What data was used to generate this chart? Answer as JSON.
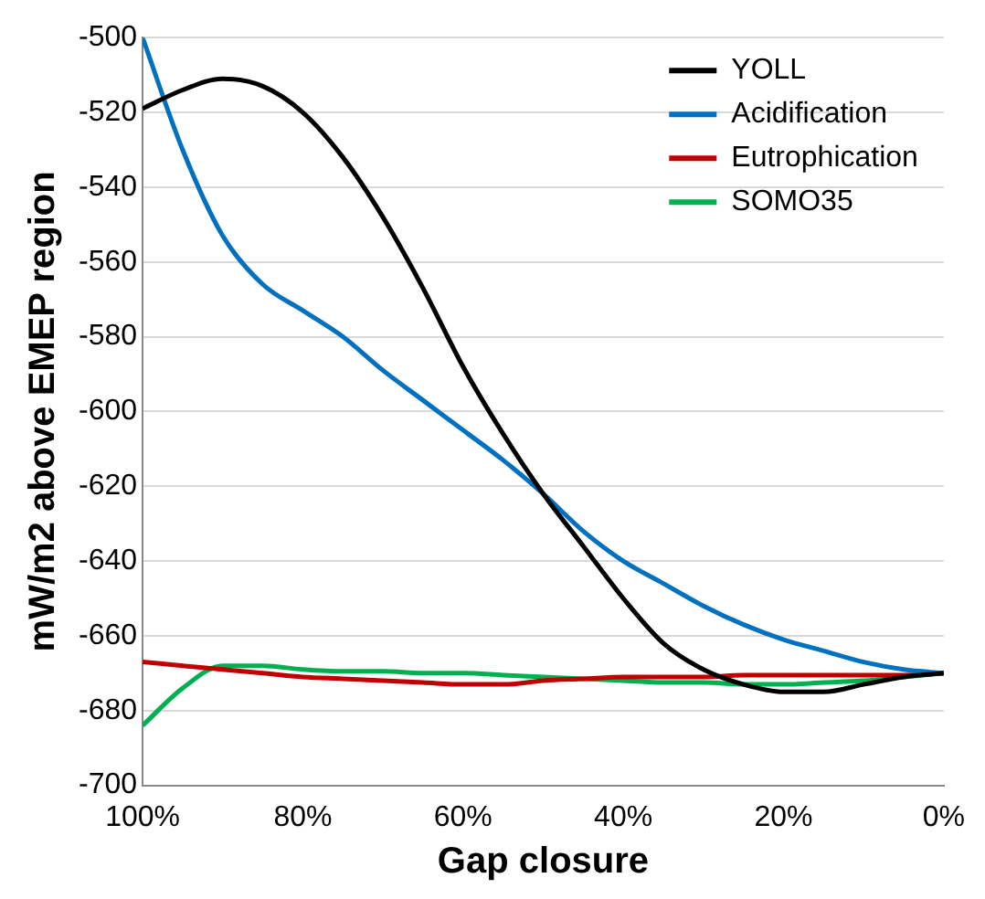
{
  "chart_data": {
    "type": "line",
    "xlabel": "Gap closure",
    "ylabel": "mW/m2 above EMEP region",
    "x": [
      100,
      95,
      90,
      85,
      80,
      75,
      70,
      65,
      60,
      55,
      50,
      45,
      40,
      35,
      30,
      25,
      20,
      15,
      10,
      5,
      0
    ],
    "series": [
      {
        "name": "YOLL",
        "color": "#000000",
        "values": [
          -519,
          -514,
          -511,
          -513,
          -520,
          -532,
          -548,
          -567,
          -588,
          -606,
          -622,
          -636,
          -650,
          -662,
          -669,
          -673,
          -675,
          -675,
          -673,
          -671,
          -670
        ]
      },
      {
        "name": "Acidification",
        "color": "#0070c0",
        "values": [
          -500,
          -530,
          -553,
          -566,
          -573,
          -580,
          -589,
          -597,
          -605,
          -613,
          -622,
          -632,
          -640,
          -646,
          -652,
          -657,
          -661,
          -664,
          -667,
          -669,
          -670
        ]
      },
      {
        "name": "Eutrophication",
        "color": "#c00000",
        "values": [
          -667,
          -668,
          -669,
          -670,
          -671,
          -671.5,
          -672,
          -672.5,
          -673,
          -673,
          -672,
          -671.5,
          -671,
          -671,
          -671,
          -670.5,
          -670.5,
          -670.5,
          -670.5,
          -670.5,
          -670
        ]
      },
      {
        "name": "SOMO35",
        "color": "#00b050",
        "values": [
          -684,
          -674,
          -668,
          -668,
          -669,
          -669.5,
          -669.5,
          -670,
          -670,
          -670.5,
          -671,
          -671.5,
          -672,
          -672.5,
          -672.5,
          -673,
          -673,
          -672.5,
          -672,
          -671,
          -670
        ]
      }
    ],
    "xlim": [
      100,
      0
    ],
    "xticks": [
      {
        "value": 100,
        "label": "100%"
      },
      {
        "value": 80,
        "label": "80%"
      },
      {
        "value": 60,
        "label": "60%"
      },
      {
        "value": 40,
        "label": "40%"
      },
      {
        "value": 20,
        "label": "20%"
      },
      {
        "value": 0,
        "label": "0%"
      }
    ],
    "ylim": [
      -700,
      -500
    ],
    "yticks": [
      -700,
      -680,
      -660,
      -640,
      -620,
      -600,
      -580,
      -560,
      -540,
      -520,
      -500
    ],
    "grid": "y",
    "legend": "top right",
    "marker": "none",
    "line_style": "solid"
  }
}
